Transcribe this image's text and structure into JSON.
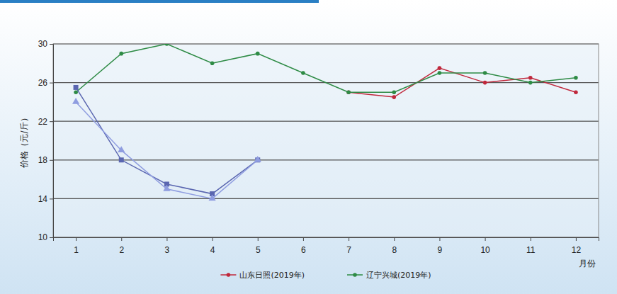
{
  "chart_data": {
    "type": "line",
    "x_label": "月份",
    "y_label": "价格（元/斤）",
    "categories": [
      "1",
      "2",
      "3",
      "4",
      "5",
      "6",
      "7",
      "8",
      "9",
      "10",
      "11",
      "12"
    ],
    "ylim": [
      10,
      30
    ],
    "yticks": [
      10,
      14,
      18,
      22,
      26,
      30
    ],
    "grid": true,
    "legend": "bottom",
    "series": [
      {
        "name": "山东日照(2019年)",
        "color": "#c0283c",
        "marker": "circle",
        "values": [
          null,
          null,
          null,
          null,
          null,
          null,
          25,
          24.5,
          27.5,
          26,
          26.5,
          25
        ]
      },
      {
        "name": "辽宁兴城(2019年)",
        "color": "#2e8b45",
        "marker": "circle",
        "values": [
          25,
          29,
          30,
          28,
          29,
          27,
          25,
          25,
          27,
          27,
          26,
          26.5
        ]
      },
      {
        "color": "#5a66b0",
        "marker": "square",
        "values": [
          25.5,
          18,
          15.5,
          14.5,
          18,
          null,
          null,
          null,
          null,
          null,
          null,
          null
        ]
      },
      {
        "color": "#8f9de0",
        "marker": "triangle",
        "values": [
          24,
          19,
          15,
          14,
          18,
          null,
          null,
          null,
          null,
          null,
          null,
          null
        ]
      }
    ]
  }
}
